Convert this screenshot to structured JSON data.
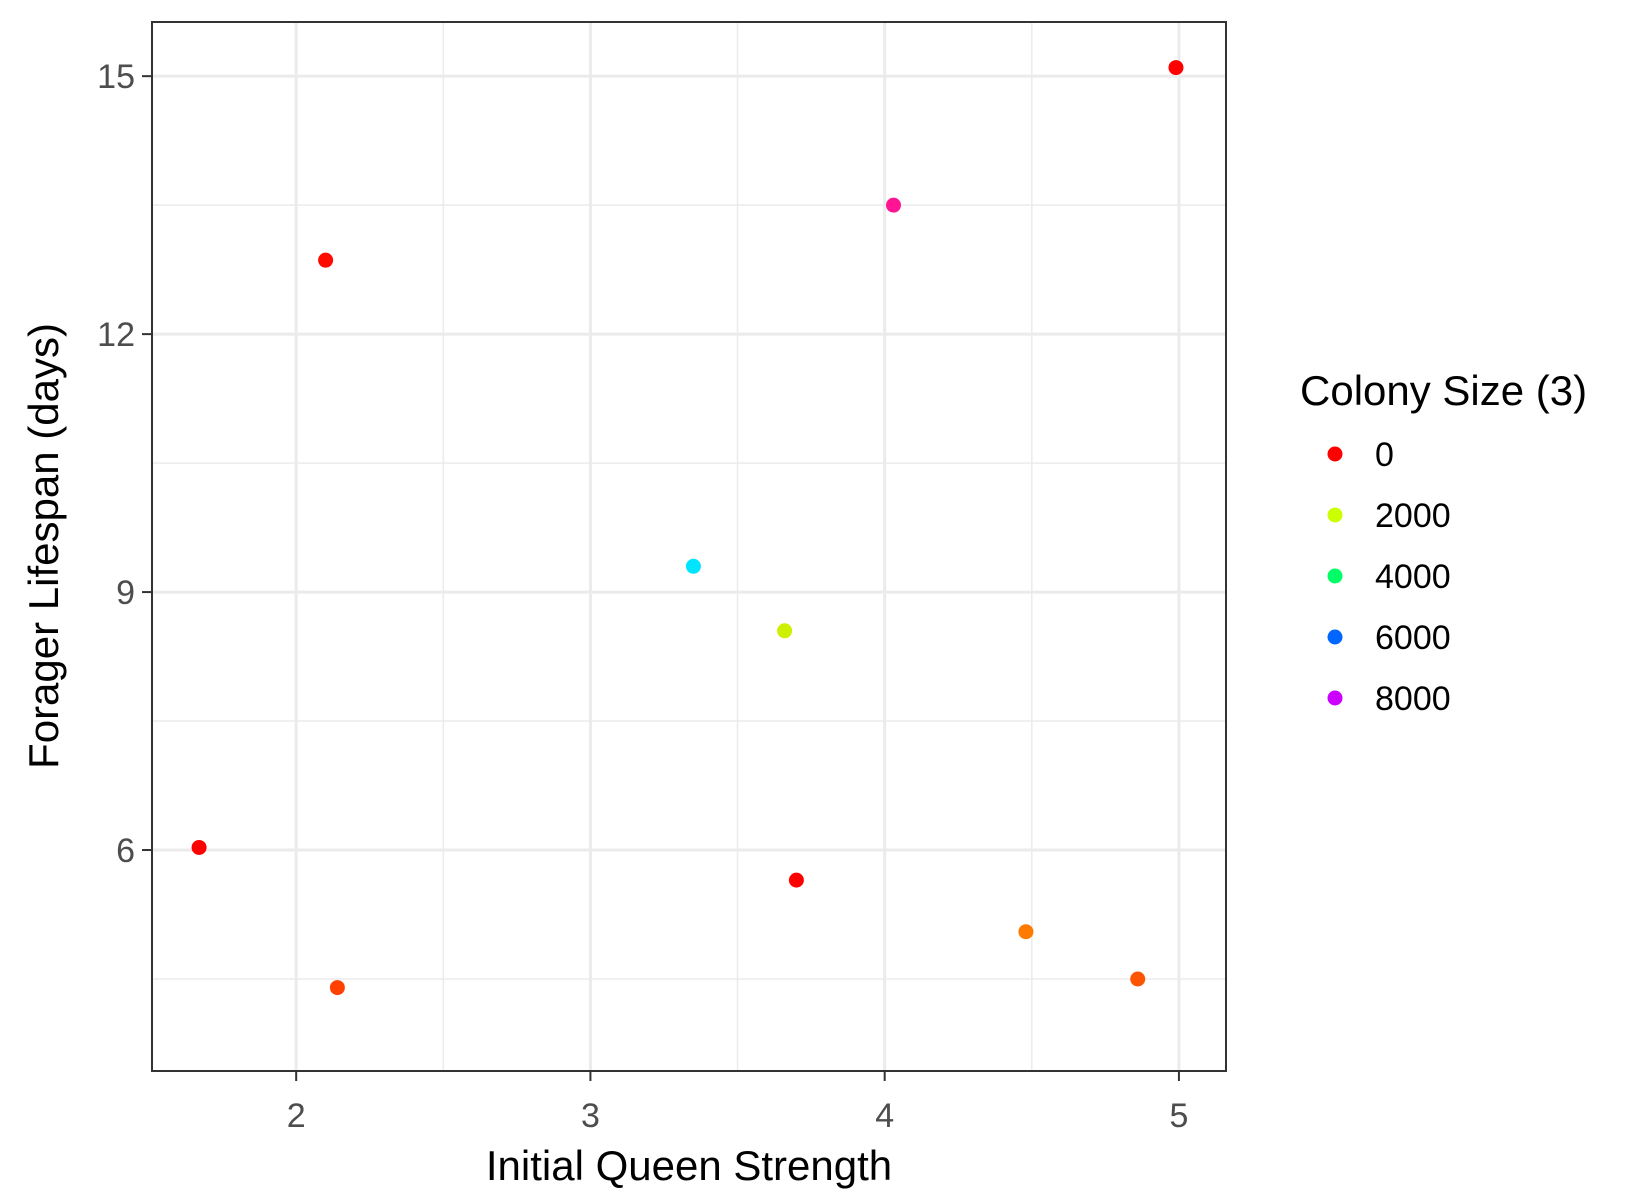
{
  "chart_data": {
    "type": "scatter",
    "title": "",
    "xlabel": "Initial Queen Strength",
    "ylabel": "Forager Lifespan (days)",
    "xlim": [
      1.51,
      5.16
    ],
    "ylim": [
      3.43,
      15.63
    ],
    "x_ticks": [
      2,
      3,
      4,
      5
    ],
    "y_ticks": [
      6,
      9,
      12,
      15
    ],
    "x_tick_labels": [
      "2",
      "3",
      "4",
      "5"
    ],
    "y_tick_labels": [
      "6",
      "9",
      "12",
      "15"
    ],
    "grid": true,
    "legend": {
      "title": "Colony Size (3)",
      "position": "right",
      "items": [
        {
          "label": "0",
          "color": "#ff0000"
        },
        {
          "label": "2000",
          "color": "#ccff00"
        },
        {
          "label": "4000",
          "color": "#00ff66"
        },
        {
          "label": "6000",
          "color": "#0066ff"
        },
        {
          "label": "8000",
          "color": "#cc00ff"
        }
      ]
    },
    "points": [
      {
        "x": 1.67,
        "y": 6.03,
        "color": "#ff0000"
      },
      {
        "x": 2.1,
        "y": 12.86,
        "color": "#ff0a00"
      },
      {
        "x": 2.14,
        "y": 4.4,
        "color": "#ff4000"
      },
      {
        "x": 3.35,
        "y": 9.3,
        "color": "#00e5ff"
      },
      {
        "x": 3.66,
        "y": 8.55,
        "color": "#ccf000"
      },
      {
        "x": 3.7,
        "y": 5.65,
        "color": "#ff0000"
      },
      {
        "x": 4.03,
        "y": 13.5,
        "color": "#ff1493"
      },
      {
        "x": 4.48,
        "y": 5.05,
        "color": "#ff7a00"
      },
      {
        "x": 4.86,
        "y": 4.5,
        "color": "#ff5500"
      },
      {
        "x": 4.99,
        "y": 15.1,
        "color": "#ff0000"
      }
    ]
  }
}
